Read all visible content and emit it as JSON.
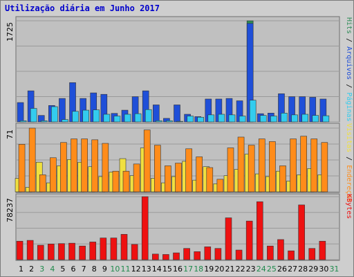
{
  "chart_data": {
    "type": "bar",
    "title": "Utilização diária em Junho 2017",
    "categories": [
      "1",
      "2",
      "3",
      "4",
      "5",
      "6",
      "7",
      "8",
      "9",
      "10",
      "11",
      "12",
      "13",
      "14",
      "15",
      "16",
      "17",
      "18",
      "19",
      "20",
      "21",
      "22",
      "23",
      "24",
      "25",
      "26",
      "27",
      "28",
      "29",
      "30",
      "31"
    ],
    "weekend_days": [
      "3",
      "4",
      "10",
      "11",
      "17",
      "18",
      "24",
      "25",
      "31"
    ],
    "panels": [
      {
        "ymax_label": "1725",
        "ylim": [
          0,
          1725
        ],
        "legend": [
          "Hits",
          "Arquivos",
          "Páginas"
        ],
        "legend_separator": " / ",
        "series": [
          {
            "name": "Hits",
            "color": "#2e8b57",
            "values": [
              0,
              0,
              0,
              0,
              0,
              0,
              0,
              0,
              0,
              0,
              0,
              0,
              0,
              0,
              0,
              0,
              0,
              0,
              0,
              0,
              0,
              0,
              1725,
              0,
              0,
              0,
              0,
              0,
              0,
              0,
              0
            ]
          },
          {
            "name": "Arquivos",
            "color": "#1f4fd8",
            "values": [
              330,
              530,
              110,
              280,
              400,
              670,
              400,
              495,
              470,
              145,
              200,
              430,
              530,
              290,
              60,
              290,
              130,
              90,
              390,
              390,
              400,
              360,
              1680,
              140,
              150,
              480,
              430,
              430,
              420,
              390,
              null
            ]
          },
          {
            "name": "Páginas",
            "color": "#33ccee",
            "values": [
              20,
              230,
              20,
              260,
              40,
              180,
              200,
              205,
              130,
              100,
              130,
              140,
              210,
              20,
              20,
              10,
              100,
              80,
              120,
              130,
              120,
              100,
              370,
              110,
              100,
              150,
              120,
              130,
              110,
              105,
              null
            ]
          }
        ]
      },
      {
        "ymax_label": "71",
        "ylim": [
          0,
          71
        ],
        "legend": [
          "Visitas",
          "Endereços"
        ],
        "legend_separator": " / ",
        "series": [
          {
            "name": "Visitas",
            "color": "#f0e040",
            "values": [
              15,
              5,
              33,
              10,
              29,
              36,
              33,
              28,
              17,
              22,
              37,
              18,
              49,
              15,
              10,
              17,
              34,
              13,
              28,
              9,
              18,
              25,
              42,
              20,
              17,
              23,
              12,
              19,
              26,
              19,
              null
            ]
          },
          {
            "name": "Endereços",
            "color": "#ff8c1a",
            "values": [
              53,
              71,
              19,
              38,
              55,
              59,
              59,
              58,
              54,
              23,
              23,
              31,
              69,
              52,
              29,
              32,
              48,
              39,
              27,
              14,
              49,
              61,
              52,
              59,
              56,
              29,
              59,
              62,
              59,
              55,
              null
            ]
          }
        ]
      },
      {
        "ymax_label": "78237",
        "ylim": [
          0,
          78237
        ],
        "legend": [
          "KBytes"
        ],
        "legend_separator": "",
        "series": [
          {
            "name": "KBytes",
            "color": "#ee1111",
            "values": [
              23000,
              24000,
              18000,
              19500,
              20000,
              20500,
              17000,
              22000,
              27000,
              27000,
              31500,
              19000,
              78237,
              7000,
              6500,
              8500,
              14000,
              10000,
              16000,
              14000,
              52000,
              12000,
              48000,
              72000,
              17000,
              25000,
              11000,
              68000,
              14000,
              23000,
              null
            ]
          }
        ]
      }
    ]
  }
}
